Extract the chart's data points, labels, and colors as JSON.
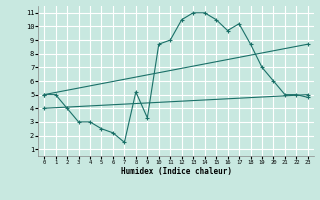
{
  "xlabel": "Humidex (Indice chaleur)",
  "xlim": [
    -0.5,
    23.5
  ],
  "ylim": [
    0.5,
    11.5
  ],
  "xticks": [
    0,
    1,
    2,
    3,
    4,
    5,
    6,
    7,
    8,
    9,
    10,
    11,
    12,
    13,
    14,
    15,
    16,
    17,
    18,
    19,
    20,
    21,
    22,
    23
  ],
  "yticks": [
    1,
    2,
    3,
    4,
    5,
    6,
    7,
    8,
    9,
    10,
    11
  ],
  "bg_color": "#c8e8e0",
  "grid_color": "#ffffff",
  "line_color": "#1a7068",
  "line1_x": [
    0,
    1,
    2,
    3,
    4,
    5,
    6,
    7,
    8,
    9,
    10,
    11,
    12,
    13,
    14,
    15,
    16,
    17,
    18,
    19,
    20,
    21,
    22,
    23
  ],
  "line1_y": [
    5.0,
    5.0,
    4.0,
    3.0,
    3.0,
    2.5,
    2.2,
    1.5,
    5.2,
    3.3,
    8.7,
    9.0,
    10.5,
    11.0,
    11.0,
    10.5,
    9.7,
    10.2,
    8.7,
    7.0,
    6.0,
    5.0,
    5.0,
    4.8
  ],
  "line2_x": [
    0,
    23
  ],
  "line2_y": [
    5.0,
    8.7
  ],
  "line3_x": [
    0,
    23
  ],
  "line3_y": [
    4.0,
    5.0
  ]
}
